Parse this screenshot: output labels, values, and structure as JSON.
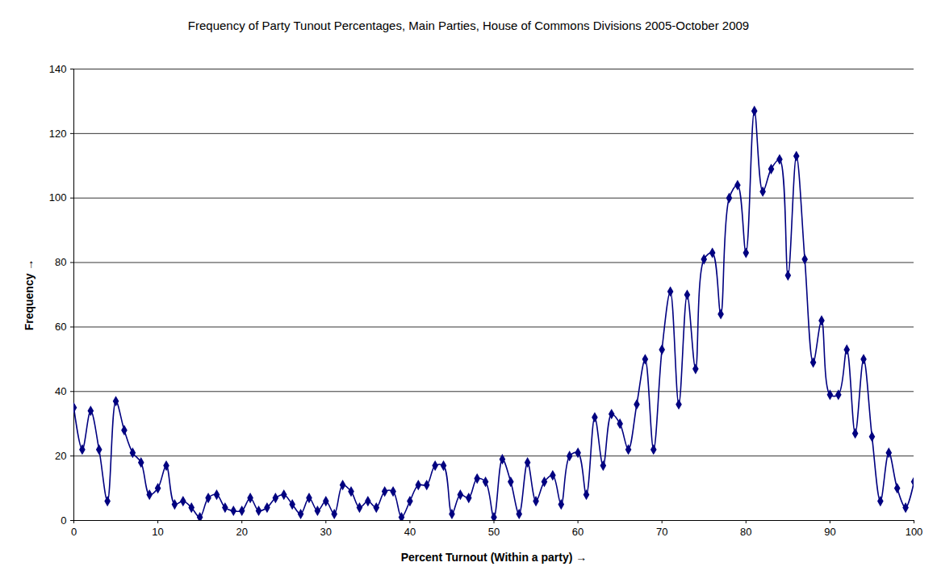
{
  "chart_data": {
    "type": "line",
    "title": "Frequency of Party Tunout Percentages, Main Parties, House of Commons Divisions 2005-October 2009",
    "x_label": "Percent Turnout (Within a party)",
    "y_label": "Frequency",
    "x": [
      0,
      1,
      2,
      3,
      4,
      5,
      6,
      7,
      8,
      9,
      10,
      11,
      12,
      13,
      14,
      15,
      16,
      17,
      18,
      19,
      20,
      21,
      22,
      23,
      24,
      25,
      26,
      27,
      28,
      29,
      30,
      31,
      32,
      33,
      34,
      35,
      36,
      37,
      38,
      39,
      40,
      41,
      42,
      43,
      44,
      45,
      46,
      47,
      48,
      49,
      50,
      51,
      52,
      53,
      54,
      55,
      56,
      57,
      58,
      59,
      60,
      61,
      62,
      63,
      64,
      65,
      66,
      67,
      68,
      69,
      70,
      71,
      72,
      73,
      74,
      75,
      76,
      77,
      78,
      79,
      80,
      81,
      82,
      83,
      84,
      85,
      86,
      87,
      88,
      89,
      90,
      91,
      92,
      93,
      94,
      95,
      96,
      97,
      98,
      99,
      100
    ],
    "values": [
      35,
      22,
      34,
      22,
      6,
      37,
      28,
      21,
      18,
      8,
      10,
      17,
      5,
      6,
      4,
      1,
      7,
      8,
      4,
      3,
      3,
      7,
      3,
      4,
      7,
      8,
      5,
      2,
      7,
      3,
      6,
      2,
      11,
      9,
      4,
      6,
      4,
      9,
      9,
      1,
      6,
      11,
      11,
      17,
      17,
      2,
      8,
      7,
      13,
      12,
      1,
      19,
      12,
      2,
      18,
      6,
      12,
      14,
      5,
      20,
      21,
      8,
      32,
      17,
      33,
      30,
      22,
      36,
      50,
      22,
      53,
      71,
      36,
      70,
      47,
      81,
      83,
      64,
      100,
      104,
      83,
      127,
      102,
      109,
      112,
      76,
      113,
      81,
      49,
      62,
      39,
      39,
      53,
      27,
      50,
      26,
      6,
      21,
      10,
      4,
      12
    ],
    "color": "#000080",
    "marker": "diamond",
    "line_style": "solid",
    "xlim": [
      0,
      100
    ],
    "xticks": [
      0,
      10,
      20,
      30,
      40,
      50,
      60,
      70,
      80,
      90,
      100
    ],
    "ylim": [
      0,
      140
    ],
    "yticks": [
      0,
      20,
      40,
      60,
      80,
      100,
      120,
      140
    ],
    "grid": true
  }
}
